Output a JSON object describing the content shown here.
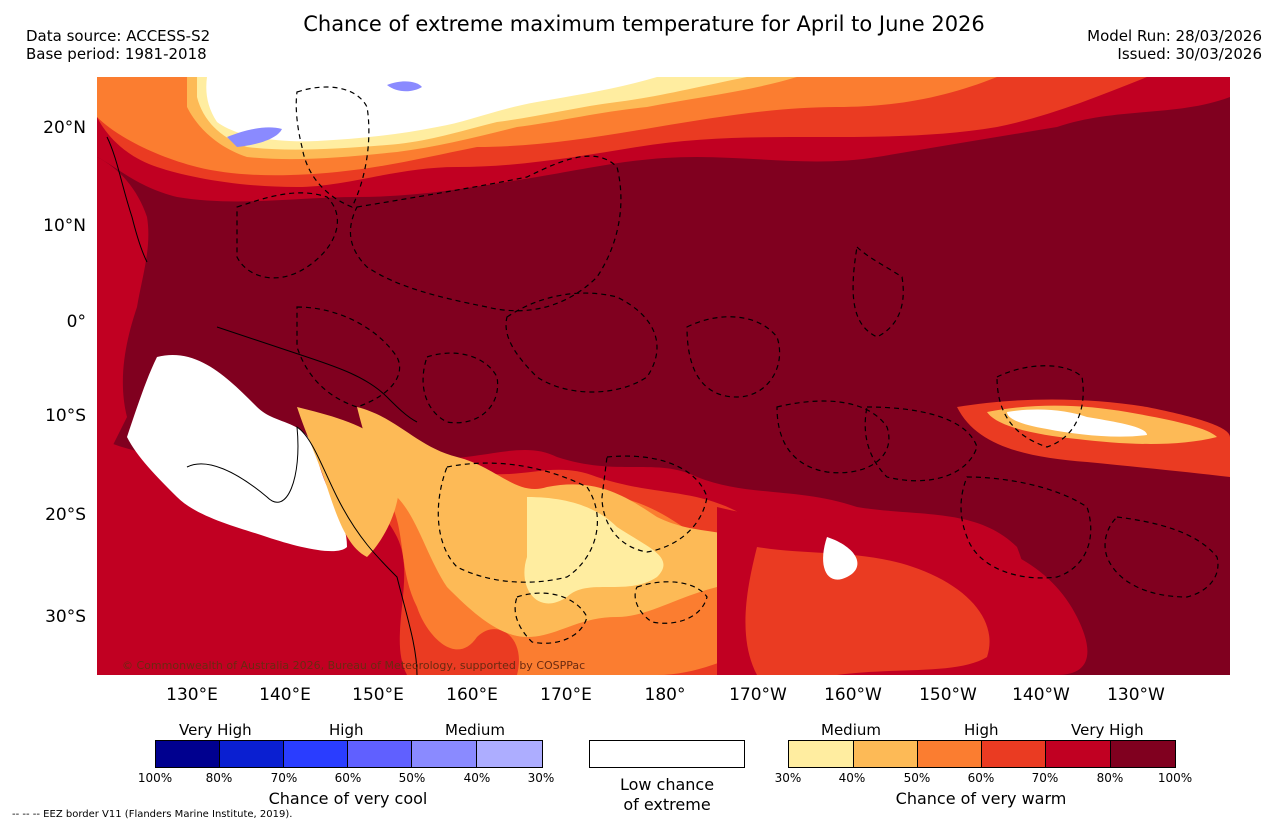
{
  "title": "Chance of extreme maximum temperature for April to June 2026",
  "meta": {
    "data_source": "Data source: ACCESS-S2",
    "base_period": "Base period: 1981-2018",
    "model_run": "Model Run: 28/03/2026",
    "issued": "Issued: 30/03/2026"
  },
  "map": {
    "latitude_labels": [
      "20°N",
      "10°N",
      "0°",
      "10°S",
      "20°S",
      "30°S"
    ],
    "longitude_labels": [
      "130°E",
      "140°E",
      "150°E",
      "160°E",
      "170°E",
      "180°",
      "170°W",
      "160°W",
      "150°W",
      "140°W",
      "130°W"
    ],
    "copyright": "© Commonwealth of Australia 2026, Bureau of Meteorology, supported by COSPPac",
    "colors": {
      "very_warm_80_100": "#80001f",
      "very_warm_70_80": "#c10022",
      "high_60_70": "#ea3b22",
      "high_50_60": "#fb7d30",
      "medium_40_50": "#fdba56",
      "medium_30_40": "#ffeda0",
      "low": "#ffffff",
      "cool_30_40": "#adadff",
      "cool_40_50": "#8a8aff"
    }
  },
  "legend": {
    "cool": {
      "headings": [
        "Very High",
        "High",
        "Medium"
      ],
      "colors": [
        "#00008f",
        "#0a1fd1",
        "#2a3dff",
        "#6060ff",
        "#8a8aff",
        "#adadff"
      ],
      "percents": [
        "100%",
        "80%",
        "70%",
        "60%",
        "50%",
        "40%",
        "30%"
      ],
      "caption": "Chance of very cool"
    },
    "low": {
      "color": "#ffffff",
      "caption_line1": "Low chance",
      "caption_line2": "of extreme"
    },
    "warm": {
      "headings": [
        "Medium",
        "High",
        "Very High"
      ],
      "colors": [
        "#ffeda0",
        "#fdba56",
        "#fb7d30",
        "#ea3b22",
        "#c10022",
        "#80001f"
      ],
      "percents": [
        "30%",
        "40%",
        "50%",
        "60%",
        "70%",
        "80%",
        "100%"
      ],
      "caption": "Chance of very warm"
    }
  },
  "footer_note": "--  --  -- EEZ border V11 (Flanders Marine Institute, 2019)."
}
